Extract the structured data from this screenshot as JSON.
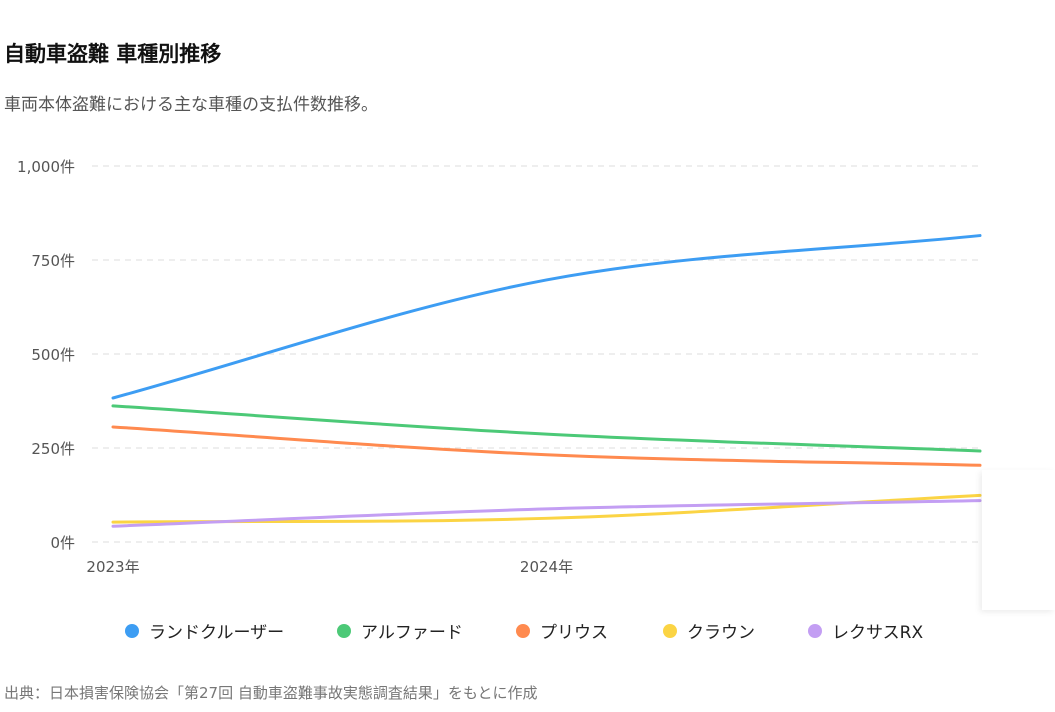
{
  "header": {
    "title": "自動車盗難 車種別推移",
    "subtitle": "車両本体盗難における主な車種の支払件数推移。"
  },
  "footer": {
    "source": "出典：日本損害保険協会「第27回 自動車盗難事故実態調査結果」をもとに作成"
  },
  "chart_data": {
    "type": "line",
    "title": "自動車盗難 車種別推移",
    "subtitle": "車両本体盗難における主な車種の支払件数推移。",
    "x": [
      2023,
      2024,
      2025
    ],
    "x_tick_labels": [
      "2023年",
      "2024年"
    ],
    "x_tick_values": [
      2023,
      2024
    ],
    "ylim": [
      0,
      1000
    ],
    "y_ticks": [
      0,
      250,
      500,
      750,
      1000
    ],
    "y_tick_labels": [
      "0件",
      "250件",
      "500件",
      "750件",
      "1,000件"
    ],
    "grid": true,
    "legend_position": "bottom",
    "series": [
      {
        "name": "ランドクルーザー",
        "color": "#3d9df3",
        "values": [
          383,
          697,
          815
        ]
      },
      {
        "name": "アルファード",
        "color": "#4cc977",
        "values": [
          362,
          287,
          242
        ]
      },
      {
        "name": "プリウス",
        "color": "#ff8a4f",
        "values": [
          306,
          232,
          204
        ]
      },
      {
        "name": "クラウン",
        "color": "#fbd444",
        "values": [
          53,
          63,
          124
        ]
      },
      {
        "name": "レクサスRX",
        "color": "#c39ef3",
        "values": [
          42,
          88,
          110
        ]
      }
    ]
  }
}
